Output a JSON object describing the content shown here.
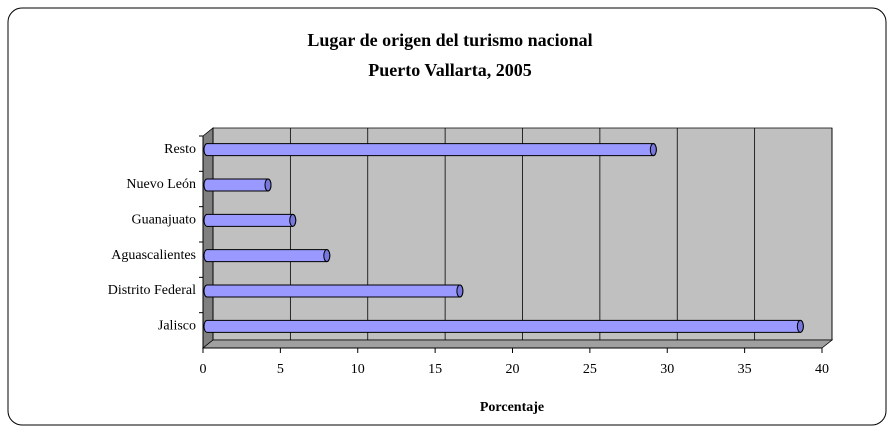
{
  "chart_data": {
    "type": "bar",
    "orientation": "horizontal",
    "title": "Lugar de origen del turismo nacional",
    "subtitle": "Puerto Vallarta, 2005",
    "x_label": "Porcentaje",
    "categories": [
      "Jalisco",
      "Distrito Federal",
      "Aguascalientes",
      "Guanajuato",
      "Nuevo León",
      "Resto"
    ],
    "values": [
      38.6,
      16.6,
      8.0,
      5.8,
      4.2,
      29.1
    ],
    "color": "#9999ff",
    "xlim": [
      0,
      40
    ],
    "xticks": [
      0,
      5,
      10,
      15,
      20,
      25,
      30,
      35,
      40
    ],
    "grid": true
  }
}
